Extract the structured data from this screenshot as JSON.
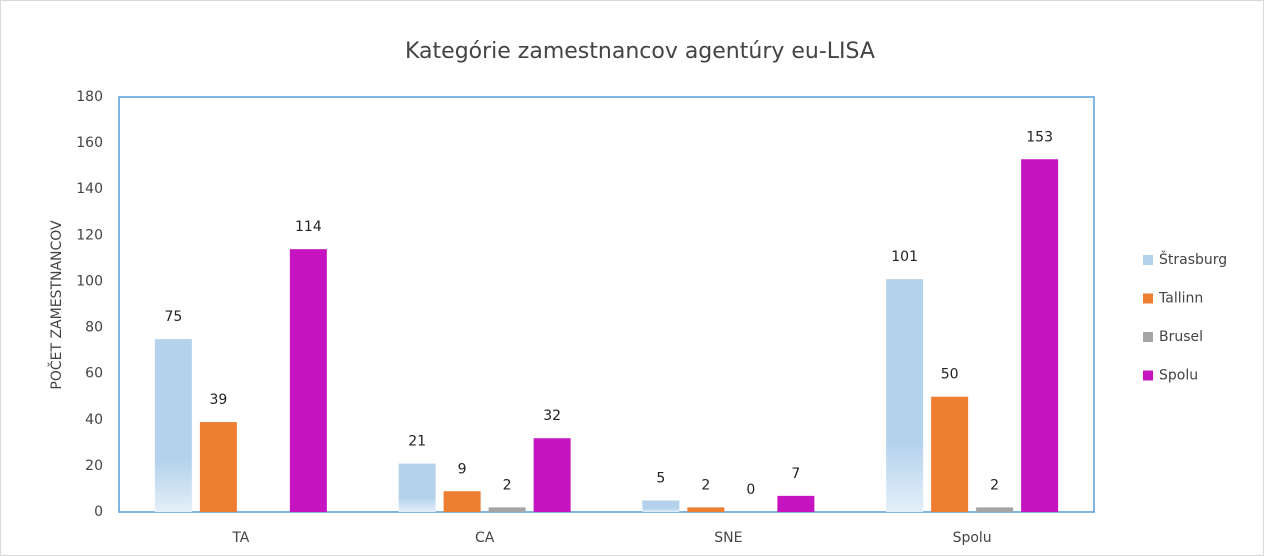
{
  "chart_data": {
    "type": "bar",
    "title": "Kategórie zamestnancov agentúry eu-LISA",
    "ylabel": "POČET ZAMESTNANCOV",
    "categories": [
      "TA",
      "CA",
      "SNE",
      "Spolu"
    ],
    "series": [
      {
        "name": "Štrasburg",
        "color": "#b4d2ec",
        "values": [
          75,
          21,
          5,
          101
        ]
      },
      {
        "name": "Tallinn",
        "color": "#ed7d31",
        "values": [
          39,
          9,
          2,
          50
        ]
      },
      {
        "name": "Brusel",
        "color": "#a5a5a5",
        "values": [
          null,
          2,
          0,
          2
        ]
      },
      {
        "name": "Spolu",
        "color": "#c514c0",
        "values": [
          114,
          32,
          7,
          153
        ]
      }
    ],
    "ylim": [
      0,
      180
    ],
    "yticks": [
      0,
      20,
      40,
      60,
      80,
      100,
      120,
      140,
      160,
      180
    ],
    "legend": "right"
  }
}
